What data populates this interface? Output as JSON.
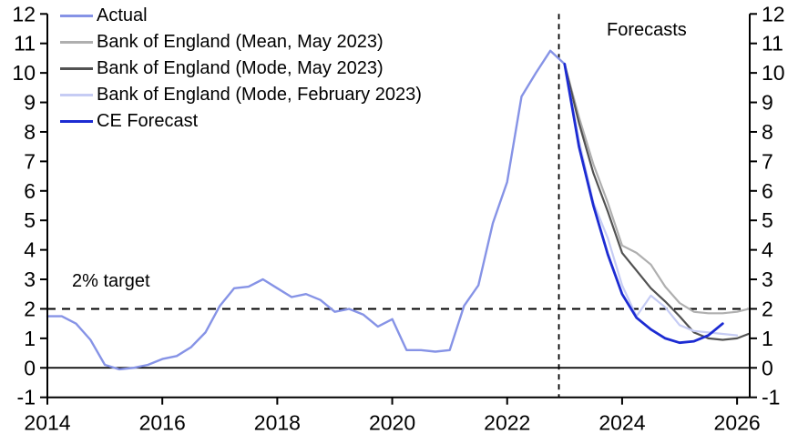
{
  "chart_data": {
    "type": "line",
    "title": "",
    "xlabel": "",
    "ylabel": "",
    "xlim": [
      2014,
      2026.22
    ],
    "ylim": [
      -1,
      12
    ],
    "x_ticks": [
      2014,
      2016,
      2018,
      2020,
      2022,
      2024,
      2026
    ],
    "y_ticks": [
      -1,
      0,
      1,
      2,
      3,
      4,
      5,
      6,
      7,
      8,
      9,
      10,
      11,
      12
    ],
    "grid": false,
    "legend_position": "top-left",
    "axis_color": "#000000",
    "annotations": {
      "target_label": "2% target",
      "target_value": 2,
      "forecast_label": "Forecasts",
      "forecast_divider_year": 2022.9,
      "zero_line_value": 0
    },
    "series": [
      {
        "name": "Actual",
        "color": "#8693E6",
        "width": 2.4,
        "x": [
          2014,
          2014.25,
          2014.5,
          2014.75,
          2015,
          2015.25,
          2015.5,
          2015.75,
          2016,
          2016.25,
          2016.5,
          2016.75,
          2017,
          2017.25,
          2017.5,
          2017.75,
          2018,
          2018.25,
          2018.5,
          2018.75,
          2019,
          2019.25,
          2019.5,
          2019.75,
          2020,
          2020.25,
          2020.5,
          2020.75,
          2021,
          2021.25,
          2021.5,
          2021.75,
          2022,
          2022.25,
          2022.5,
          2022.75,
          2023
        ],
        "values": [
          1.75,
          1.75,
          1.5,
          0.95,
          0.1,
          -0.05,
          0.0,
          0.1,
          0.3,
          0.4,
          0.7,
          1.2,
          2.1,
          2.7,
          2.75,
          3.0,
          2.7,
          2.4,
          2.5,
          2.3,
          1.9,
          2.0,
          1.8,
          1.4,
          1.65,
          0.6,
          0.6,
          0.55,
          0.6,
          2.1,
          2.8,
          4.9,
          6.3,
          9.2,
          10.0,
          10.75,
          10.3
        ]
      },
      {
        "name": "Bank of England (Mean, May 2023)",
        "color": "#AFAFAF",
        "width": 2.2,
        "x": [
          2023,
          2023.25,
          2023.5,
          2023.75,
          2024,
          2024.25,
          2024.5,
          2024.75,
          2025,
          2025.25,
          2025.5,
          2025.75,
          2026,
          2026.2
        ],
        "values": [
          10.3,
          8.5,
          6.9,
          5.6,
          4.15,
          3.9,
          3.5,
          2.75,
          2.2,
          1.9,
          1.85,
          1.85,
          1.9,
          2.0
        ]
      },
      {
        "name": "Bank of England (Mode, May 2023)",
        "color": "#525252",
        "width": 2.2,
        "x": [
          2023,
          2023.25,
          2023.5,
          2023.75,
          2024,
          2024.25,
          2024.5,
          2024.75,
          2025,
          2025.25,
          2025.5,
          2025.75,
          2026,
          2026.2
        ],
        "values": [
          10.3,
          8.3,
          6.6,
          5.3,
          3.9,
          3.3,
          2.7,
          2.25,
          1.75,
          1.2,
          1.0,
          0.95,
          1.0,
          1.15
        ]
      },
      {
        "name": "Bank of England (Mode, February 2023)",
        "color": "#C6CCF4",
        "width": 2.2,
        "x": [
          2023,
          2023.25,
          2023.5,
          2023.75,
          2024,
          2024.25,
          2024.5,
          2024.75,
          2025,
          2025.25,
          2025.5,
          2025.75,
          2026
        ],
        "values": [
          10.3,
          7.7,
          5.6,
          4.4,
          2.8,
          1.75,
          2.45,
          2.05,
          1.45,
          1.25,
          1.2,
          1.15,
          1.1
        ]
      },
      {
        "name": "CE Forecast",
        "color": "#1C2BD2",
        "width": 2.8,
        "x": [
          2023,
          2023.25,
          2023.5,
          2023.75,
          2024,
          2024.25,
          2024.5,
          2024.75,
          2025,
          2025.25,
          2025.5,
          2025.75
        ],
        "values": [
          10.3,
          7.5,
          5.5,
          3.85,
          2.5,
          1.7,
          1.3,
          1.0,
          0.85,
          0.9,
          1.1,
          1.5
        ]
      }
    ]
  }
}
